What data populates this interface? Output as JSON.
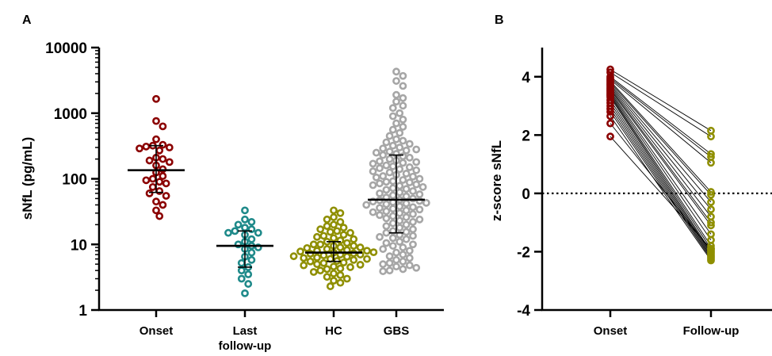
{
  "colors": {
    "onset": "#8b0000",
    "last_followup": "#1f8a8a",
    "hc": "#8f8f00",
    "gbs": "#a6a6a6",
    "axis": "#000000",
    "pair_line": "#000000"
  },
  "chart_data": [
    {
      "type": "scatter",
      "panel_label": "A",
      "ylabel": "sNfL (pg/mL)",
      "xlabel": "",
      "y_scale": "log10",
      "ylim": [
        1,
        10000
      ],
      "y_ticks": [
        1,
        10,
        100,
        1000,
        10000
      ],
      "y_tick_labels": [
        "1",
        "10",
        "100",
        "1000",
        "10000"
      ],
      "grid": false,
      "categories": [
        {
          "label_lines": [
            "Onset"
          ],
          "color_key": "onset"
        },
        {
          "label_lines": [
            "Last",
            "follow-up"
          ],
          "color_key": "last_followup"
        },
        {
          "label_lines": [
            "HC"
          ],
          "color_key": "hc"
        },
        {
          "label_lines": [
            "GBS"
          ],
          "color_key": "gbs"
        }
      ],
      "series": [
        {
          "values": [
            1650,
            760,
            630,
            400,
            330,
            320,
            310,
            300,
            290,
            270,
            210,
            200,
            190,
            180,
            160,
            140,
            125,
            110,
            100,
            95,
            90,
            85,
            75,
            65,
            60,
            55,
            45,
            40,
            33,
            27
          ],
          "median": 135,
          "iqr": [
            62,
            320
          ]
        },
        {
          "values": [
            33,
            24,
            22,
            20,
            18,
            17,
            16,
            15,
            15,
            14,
            12,
            11,
            10,
            9.5,
            9,
            8.5,
            7.5,
            6.5,
            5.8,
            5.2,
            4.5,
            4,
            3.5,
            3,
            2.5,
            1.8
          ],
          "median": 9.5,
          "iqr": [
            4.5,
            16
          ]
        },
        {
          "values": [
            33,
            30,
            26,
            24,
            22,
            20,
            19,
            18,
            17,
            16,
            15.5,
            15,
            14,
            13.5,
            13,
            12.5,
            12,
            11.5,
            11,
            10.5,
            10,
            10,
            9.5,
            9.5,
            9,
            9,
            8.8,
            8.5,
            8.2,
            8,
            8,
            7.8,
            7.6,
            7.5,
            7.3,
            7.2,
            7,
            7,
            6.8,
            6.6,
            6.5,
            6.3,
            6.2,
            6,
            6,
            5.8,
            5.6,
            5.5,
            5.3,
            5.2,
            5,
            4.9,
            4.8,
            4.6,
            4.5,
            4.3,
            4.2,
            4,
            3.8,
            3.6,
            3.4,
            3.2,
            3,
            2.8,
            2.6,
            2.3
          ],
          "median": 7.5,
          "iqr": [
            5.5,
            11
          ]
        },
        {
          "values": [
            4300,
            3700,
            3100,
            2600,
            1900,
            1700,
            1500,
            1300,
            1200,
            1000,
            900,
            800,
            700,
            620,
            560,
            500,
            450,
            400,
            380,
            360,
            340,
            320,
            300,
            290,
            280,
            270,
            260,
            250,
            240,
            230,
            220,
            210,
            200,
            190,
            185,
            180,
            175,
            170,
            160,
            155,
            150,
            145,
            140,
            135,
            130,
            125,
            120,
            115,
            110,
            108,
            105,
            100,
            96,
            92,
            90,
            88,
            85,
            82,
            80,
            78,
            75,
            72,
            70,
            68,
            65,
            62,
            60,
            58,
            56,
            54,
            52,
            50,
            48,
            47,
            46,
            45,
            44,
            43,
            42,
            41,
            40,
            38,
            37,
            36,
            35,
            34,
            33,
            32,
            31,
            30,
            29,
            28,
            27,
            26,
            25,
            24,
            23,
            22,
            21,
            20,
            19,
            18,
            17,
            16,
            15.5,
            15,
            14,
            13.5,
            13,
            12.5,
            12,
            11,
            10.5,
            10,
            9.5,
            9,
            8.5,
            8,
            7.5,
            7,
            6.6,
            6.2,
            5.8,
            5.5,
            5.2,
            5,
            4.8,
            4.6,
            4.4,
            4.2,
            4,
            3.9
          ],
          "median": 48,
          "iqr": [
            15,
            230
          ]
        }
      ]
    },
    {
      "type": "line",
      "panel_label": "B",
      "ylabel": "z-score sNfL",
      "xlabel": "",
      "ylim": [
        -4,
        5
      ],
      "y_ticks": [
        -4,
        -2,
        0,
        2,
        4
      ],
      "y_tick_labels": [
        "-4",
        "-2",
        "0",
        "2",
        "4"
      ],
      "reference_line": 0,
      "grid": false,
      "categories": [
        "Onset",
        "Follow-up"
      ],
      "category_color_keys": [
        "onset",
        "hc"
      ],
      "pairs": [
        [
          4.25,
          2.15
        ],
        [
          4.15,
          1.95
        ],
        [
          4.0,
          1.35
        ],
        [
          3.95,
          1.25
        ],
        [
          3.9,
          1.05
        ],
        [
          3.85,
          0.05
        ],
        [
          3.8,
          -0.05
        ],
        [
          3.75,
          -0.3
        ],
        [
          3.7,
          -0.55
        ],
        [
          3.65,
          -0.8
        ],
        [
          3.6,
          -1.0
        ],
        [
          3.55,
          -1.1
        ],
        [
          3.5,
          -1.4
        ],
        [
          3.45,
          -1.6
        ],
        [
          3.4,
          -1.8
        ],
        [
          3.35,
          -1.9
        ],
        [
          3.3,
          -2.0
        ],
        [
          3.2,
          -2.05
        ],
        [
          3.1,
          -2.1
        ],
        [
          3.0,
          -2.15
        ],
        [
          2.9,
          -2.2
        ],
        [
          2.8,
          -2.25
        ],
        [
          2.65,
          -2.3
        ],
        [
          2.4,
          -1.95
        ],
        [
          1.95,
          -1.9
        ]
      ]
    }
  ]
}
